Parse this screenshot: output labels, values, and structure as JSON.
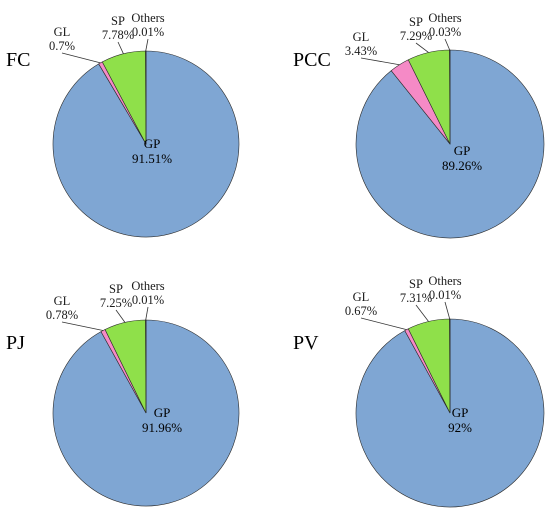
{
  "chart_data": [
    {
      "type": "pie",
      "title": "FC",
      "slices": [
        {
          "label": "GP",
          "value": 91.51,
          "text": "91.51%"
        },
        {
          "label": "GL",
          "value": 0.7,
          "text": "0.7%"
        },
        {
          "label": "SP",
          "value": 7.78,
          "text": "7.78%"
        },
        {
          "label": "Others",
          "value": 0.01,
          "text": "0.01%"
        }
      ]
    },
    {
      "type": "pie",
      "title": "PCC",
      "slices": [
        {
          "label": "GP",
          "value": 89.26,
          "text": "89.26%"
        },
        {
          "label": "GL",
          "value": 3.43,
          "text": "3.43%"
        },
        {
          "label": "SP",
          "value": 7.29,
          "text": "7.29%"
        },
        {
          "label": "Others",
          "value": 0.03,
          "text": "0.03%"
        }
      ]
    },
    {
      "type": "pie",
      "title": "PJ",
      "slices": [
        {
          "label": "GP",
          "value": 91.96,
          "text": "91.96%"
        },
        {
          "label": "GL",
          "value": 0.78,
          "text": "0.78%"
        },
        {
          "label": "SP",
          "value": 7.25,
          "text": "7.25%"
        },
        {
          "label": "Others",
          "value": 0.01,
          "text": "0.01%"
        }
      ]
    },
    {
      "type": "pie",
      "title": "PV",
      "slices": [
        {
          "label": "GP",
          "value": 92,
          "text": "92%"
        },
        {
          "label": "GL",
          "value": 0.67,
          "text": "0.67%"
        },
        {
          "label": "SP",
          "value": 7.31,
          "text": "7.31%"
        },
        {
          "label": "Others",
          "value": 0.01,
          "text": "0.01%"
        }
      ]
    }
  ],
  "colors": {
    "GP": "#7fa6d3",
    "GL": "#f58ac6",
    "SP": "#8fe04a",
    "Others": "#1f1f1f"
  }
}
